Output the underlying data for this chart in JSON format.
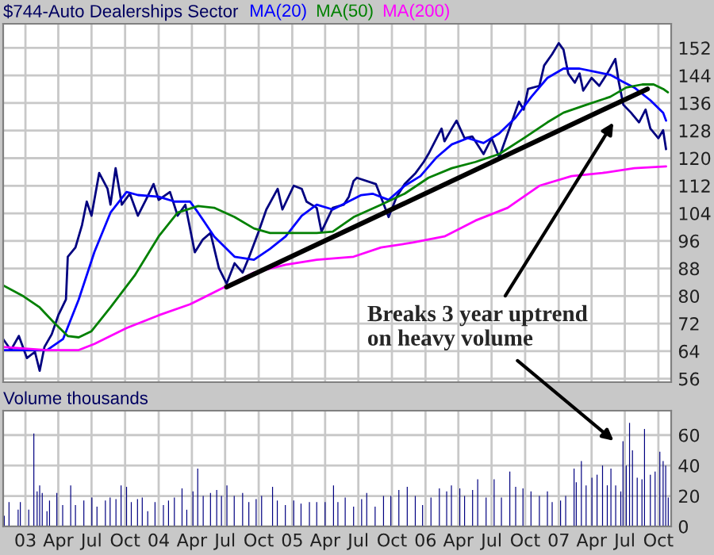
{
  "chart_data": [
    {
      "type": "line",
      "title": "$744-Auto Dealerships Sector",
      "series": [
        {
          "color": "#000080",
          "x": [
            "2002-11-01",
            "2002-11-22",
            "2002-12-14",
            "2003-01-05",
            "2003-01-27",
            "2003-02-09",
            "2003-02-22",
            "2003-03-14",
            "2003-04-01",
            "2003-04-22",
            "2003-04-27",
            "2003-05-18",
            "2003-06-05",
            "2003-06-18",
            "2003-07-01",
            "2003-07-22",
            "2003-08-14",
            "2003-08-22",
            "2003-09-05",
            "2003-09-22",
            "2003-10-14",
            "2003-11-05",
            "2003-11-27",
            "2003-12-18",
            "2004-01-01",
            "2004-02-01",
            "2004-02-22",
            "2004-03-14",
            "2004-04-09",
            "2004-05-01",
            "2004-05-22",
            "2004-06-14",
            "2004-07-05",
            "2004-07-27",
            "2004-08-18",
            "2004-09-05",
            "2004-10-01",
            "2004-10-22",
            "2004-11-22",
            "2004-12-05",
            "2005-01-05",
            "2005-01-27",
            "2005-02-09",
            "2005-03-09",
            "2005-03-22",
            "2005-04-22",
            "2005-05-22",
            "2005-06-05",
            "2005-06-18",
            "2005-06-27",
            "2005-08-18",
            "2005-09-09",
            "2005-09-22",
            "2005-10-14",
            "2005-11-05",
            "2005-12-05",
            "2005-12-27",
            "2006-01-09",
            "2006-02-14",
            "2006-02-22",
            "2006-03-14",
            "2006-03-27",
            "2006-04-18",
            "2006-05-09",
            "2006-06-09",
            "2006-07-01",
            "2006-07-22",
            "2006-08-22",
            "2006-09-14",
            "2006-09-27",
            "2006-10-09",
            "2006-11-09",
            "2006-11-22",
            "2006-12-14",
            "2007-01-01",
            "2007-01-14",
            "2007-01-27",
            "2007-02-14",
            "2007-02-27",
            "2007-03-09",
            "2007-04-01",
            "2007-04-22",
            "2007-05-14",
            "2007-06-05",
            "2007-06-14",
            "2007-06-27",
            "2007-07-18",
            "2007-08-09",
            "2007-08-27",
            "2007-09-09",
            "2007-10-01",
            "2007-10-14",
            "2007-10-22"
          ],
          "values": [
            67.5,
            64.3,
            68.4,
            62,
            63.8,
            58.3,
            65.2,
            68.9,
            74.4,
            79,
            91.4,
            94.1,
            100.6,
            107.4,
            103.3,
            115.7,
            111.1,
            106.5,
            117.1,
            106.5,
            109.7,
            103.3,
            107.9,
            112.5,
            107.9,
            110.2,
            103.3,
            106.5,
            92.7,
            96.4,
            98.3,
            88.1,
            83.6,
            89.5,
            86.8,
            91.4,
            98.7,
            105.1,
            111.1,
            105.1,
            112,
            111.1,
            107.4,
            105.6,
            98.7,
            105.6,
            106.5,
            108.8,
            113.4,
            114.3,
            112.5,
            106.5,
            102.9,
            108.8,
            112.5,
            115.7,
            118.9,
            121.2,
            128.6,
            124.9,
            128.6,
            130.9,
            125.8,
            126.3,
            121.2,
            125.8,
            120.3,
            129.5,
            136.4,
            134.1,
            140.1,
            141,
            146.9,
            150.2,
            153.4,
            151.5,
            144.6,
            141.9,
            144.6,
            139.6,
            143.3,
            141,
            144.6,
            148.8,
            142.4,
            135.5,
            133.2,
            130.4,
            134.1,
            128.6,
            125.8,
            128.1,
            122.6
          ]
        },
        {
          "name": "MA(20)",
          "color": "#0000ff",
          "x": [
            "2002-11-01",
            "2003-03-01",
            "2003-04-14",
            "2003-05-27",
            "2003-07-09",
            "2003-08-22",
            "2003-10-05",
            "2003-11-05",
            "2004-01-01",
            "2004-02-14",
            "2004-03-27",
            "2004-04-18",
            "2004-06-01",
            "2004-07-27",
            "2004-09-18",
            "2004-11-01",
            "2004-12-14",
            "2005-01-27",
            "2005-03-09",
            "2005-04-22",
            "2005-07-09",
            "2005-08-09",
            "2005-09-22",
            "2005-11-05",
            "2005-12-18",
            "2006-02-01",
            "2006-03-14",
            "2006-04-27",
            "2006-06-09",
            "2006-07-22",
            "2006-09-05",
            "2006-10-18",
            "2006-12-01",
            "2007-01-14",
            "2007-02-27",
            "2007-04-09",
            "2007-05-22",
            "2007-06-22",
            "2007-07-27",
            "2007-09-09",
            "2007-10-14",
            "2007-10-22"
          ],
          "values": [
            64.3,
            64.3,
            67.5,
            79,
            92.8,
            104.2,
            110.2,
            109.3,
            108.8,
            107.4,
            107.4,
            104.2,
            97.3,
            91.4,
            90.5,
            93.7,
            97.3,
            103.3,
            106.5,
            105.1,
            109.3,
            109.7,
            107.9,
            112,
            114.8,
            120.3,
            124,
            125.8,
            124.4,
            127.2,
            131.8,
            137.8,
            143.3,
            146,
            146,
            145.1,
            144.2,
            142.4,
            140.5,
            136.8,
            133.2,
            130.9
          ]
        },
        {
          "name": "MA(50)",
          "color": "#008000",
          "x": [
            "2002-11-01",
            "2002-12-27",
            "2003-02-09",
            "2003-03-22",
            "2003-04-27",
            "2003-05-27",
            "2003-07-01",
            "2003-08-22",
            "2003-10-27",
            "2004-01-01",
            "2004-02-22",
            "2004-04-18",
            "2004-06-01",
            "2004-07-27",
            "2004-09-18",
            "2004-11-01",
            "2004-12-14",
            "2005-03-09",
            "2005-04-22",
            "2005-06-18",
            "2005-09-01",
            "2005-11-05",
            "2006-01-09",
            "2006-03-14",
            "2006-05-18",
            "2006-07-22",
            "2006-09-27",
            "2006-12-01",
            "2007-01-14",
            "2007-03-18",
            "2007-05-22",
            "2007-07-05",
            "2007-08-18",
            "2007-09-18",
            "2007-10-14",
            "2007-10-27"
          ],
          "values": [
            83.1,
            79.9,
            76.7,
            72.1,
            68.4,
            68,
            69.8,
            76.7,
            85.9,
            97.3,
            104.2,
            106.1,
            105.6,
            102.9,
            99.6,
            98.3,
            98.3,
            98.3,
            98.7,
            102.9,
            106.5,
            109.7,
            114.3,
            117.1,
            118.9,
            121.2,
            125.8,
            130.4,
            133.2,
            135.5,
            137.8,
            140.5,
            141.4,
            141.4,
            140.1,
            139.1
          ]
        },
        {
          "name": "MA(200)",
          "color": "#ff00ff",
          "x": [
            "2002-11-01",
            "2003-03-01",
            "2003-05-27",
            "2003-07-09",
            "2003-10-05",
            "2004-01-01",
            "2004-03-27",
            "2004-06-22",
            "2004-09-18",
            "2004-12-14",
            "2005-03-09",
            "2005-06-18",
            "2005-09-01",
            "2005-11-27",
            "2006-02-22",
            "2006-05-18",
            "2006-08-14",
            "2006-11-09",
            "2007-02-05",
            "2007-05-01",
            "2007-07-27",
            "2007-10-22"
          ],
          "values": [
            65.2,
            64.3,
            64.3,
            66.1,
            70.7,
            74.4,
            77.6,
            82.2,
            86.8,
            89.1,
            90.5,
            91.4,
            94.1,
            95.5,
            97.3,
            101.9,
            105.6,
            112,
            114.8,
            115.7,
            117.1,
            117.6
          ]
        },
        {
          "type": "line",
          "color": "#000000",
          "x": [
            "2004-07-05",
            "2007-09-01"
          ],
          "values": [
            82.6,
            140.1
          ]
        }
      ],
      "xlim": [
        "2002-11-01",
        "2007-11-05"
      ],
      "xticks": [
        {
          "value": "2003-01-01",
          "label": null
        },
        {
          "value": "2003-04-01",
          "label": null
        },
        {
          "value": "2003-07-01",
          "label": null
        },
        {
          "value": "2003-10-01",
          "label": null
        },
        {
          "value": "2004-01-01",
          "label": null
        },
        {
          "value": "2004-04-01",
          "label": null
        },
        {
          "value": "2004-07-01",
          "label": null
        },
        {
          "value": "2004-10-01",
          "label": null
        },
        {
          "value": "2005-01-01",
          "label": null
        },
        {
          "value": "2005-04-01",
          "label": null
        },
        {
          "value": "2005-07-01",
          "label": null
        },
        {
          "value": "2005-10-01",
          "label": null
        },
        {
          "value": "2006-01-01",
          "label": null
        },
        {
          "value": "2006-04-01",
          "label": null
        },
        {
          "value": "2006-07-01",
          "label": null
        },
        {
          "value": "2006-10-01",
          "label": null
        },
        {
          "value": "2007-01-01",
          "label": null
        },
        {
          "value": "2007-04-01",
          "label": null
        },
        {
          "value": "2007-07-01",
          "label": null
        },
        {
          "value": "2007-10-01",
          "label": null
        }
      ],
      "ylim": [
        55,
        159
      ],
      "yticks": [
        56,
        64,
        72,
        80,
        88,
        96,
        104,
        112,
        120,
        128,
        136,
        144,
        152
      ],
      "grid": true,
      "legend": "top",
      "tick_labels": "y",
      "annotations": [
        "Breaks 3 year uptrend\non heavy volume"
      ]
    },
    {
      "type": "bar",
      "title": "Volume thousands",
      "color": "#000080",
      "x": [
        "2002-11-04",
        "2002-11-17",
        "2002-12-12",
        "2002-12-18",
        "2003-01-10",
        "2003-01-24",
        "2003-02-02",
        "2003-02-09",
        "2003-02-16",
        "2003-03-01",
        "2003-03-08",
        "2003-03-28",
        "2003-04-13",
        "2003-05-05",
        "2003-05-18",
        "2003-06-10",
        "2003-07-02",
        "2003-07-16",
        "2003-08-08",
        "2003-08-21",
        "2003-09-06",
        "2003-09-20",
        "2003-10-05",
        "2003-10-18",
        "2003-11-04",
        "2003-11-17",
        "2003-12-02",
        "2003-12-22",
        "2004-01-14",
        "2004-01-28",
        "2004-02-13",
        "2004-03-05",
        "2004-03-18",
        "2004-04-04",
        "2004-04-17",
        "2004-05-02",
        "2004-05-22",
        "2004-06-08",
        "2004-06-21",
        "2004-07-06",
        "2004-07-26",
        "2004-08-18",
        "2004-09-04",
        "2004-09-24",
        "2004-10-09",
        "2004-11-08",
        "2004-11-21",
        "2004-12-13",
        "2005-01-05",
        "2005-01-25",
        "2005-02-17",
        "2005-03-09",
        "2005-04-01",
        "2005-04-24",
        "2005-05-06",
        "2005-05-26",
        "2005-06-18",
        "2005-07-10",
        "2005-07-24",
        "2005-08-16",
        "2005-09-08",
        "2005-09-28",
        "2005-10-20",
        "2005-11-12",
        "2005-12-04",
        "2005-12-24",
        "2006-01-16",
        "2006-02-08",
        "2006-02-28",
        "2006-03-13",
        "2006-04-05",
        "2006-04-18",
        "2006-05-10",
        "2006-05-24",
        "2006-06-16",
        "2006-07-08",
        "2006-07-28",
        "2006-08-20",
        "2006-09-05",
        "2006-09-25",
        "2006-10-17",
        "2006-11-09",
        "2006-12-01",
        "2006-12-14",
        "2007-01-06",
        "2007-01-20",
        "2007-02-12",
        "2007-02-18",
        "2007-03-04",
        "2007-03-17",
        "2007-04-02",
        "2007-04-16",
        "2007-05-01",
        "2007-05-14",
        "2007-05-24",
        "2007-06-06",
        "2007-06-20",
        "2007-06-26",
        "2007-07-05",
        "2007-07-14",
        "2007-07-22",
        "2007-08-04",
        "2007-08-17",
        "2007-08-24",
        "2007-09-09",
        "2007-09-22",
        "2007-10-05",
        "2007-10-14",
        "2007-10-21",
        "2007-10-28"
      ],
      "values": [
        7,
        16,
        11,
        16,
        11,
        61,
        23,
        27,
        22,
        10,
        17,
        22,
        14,
        27,
        14,
        17,
        19,
        13,
        17,
        19,
        18,
        27,
        26,
        16,
        18,
        19,
        10,
        16,
        14,
        17,
        19,
        25,
        11,
        23,
        38,
        20,
        22,
        24,
        20,
        27,
        20,
        22,
        16,
        18,
        20,
        26,
        17,
        14,
        17,
        15,
        16,
        16,
        16,
        27,
        16,
        19,
        13,
        18,
        22,
        13,
        20,
        20,
        24,
        26,
        20,
        14,
        19,
        25,
        23,
        27,
        25,
        20,
        24,
        31,
        19,
        31,
        19,
        36,
        26,
        25,
        23,
        20,
        23,
        16,
        17,
        20,
        38,
        29,
        43,
        27,
        32,
        34,
        40,
        27,
        38,
        27,
        23,
        56,
        40,
        68,
        50,
        32,
        31,
        64,
        34,
        36,
        49,
        43,
        40,
        19
      ],
      "xlim": [
        "2002-11-01",
        "2007-11-05"
      ],
      "xticks": [
        {
          "value": "2003-01-01",
          "label": "03"
        },
        {
          "value": "2003-04-01",
          "label": "Apr"
        },
        {
          "value": "2003-07-01",
          "label": "Jul"
        },
        {
          "value": "2003-10-01",
          "label": "Oct"
        },
        {
          "value": "2004-01-01",
          "label": "04"
        },
        {
          "value": "2004-04-01",
          "label": "Apr"
        },
        {
          "value": "2004-07-01",
          "label": "Jul"
        },
        {
          "value": "2004-10-01",
          "label": "Oct"
        },
        {
          "value": "2005-01-01",
          "label": "05"
        },
        {
          "value": "2005-04-01",
          "label": "Apr"
        },
        {
          "value": "2005-07-01",
          "label": "Jul"
        },
        {
          "value": "2005-10-01",
          "label": "Oct"
        },
        {
          "value": "2006-01-01",
          "label": "06"
        },
        {
          "value": "2006-04-01",
          "label": "Apr"
        },
        {
          "value": "2006-07-01",
          "label": "Jul"
        },
        {
          "value": "2006-10-01",
          "label": "Oct"
        },
        {
          "value": "2007-01-01",
          "label": "07"
        },
        {
          "value": "2007-04-01",
          "label": "Apr"
        },
        {
          "value": "2007-07-01",
          "label": "Jul"
        },
        {
          "value": "2007-10-01",
          "label": "Oct"
        }
      ],
      "ylim": [
        0,
        76
      ],
      "yticks": [
        0,
        20,
        40,
        60
      ],
      "grid": true
    }
  ]
}
